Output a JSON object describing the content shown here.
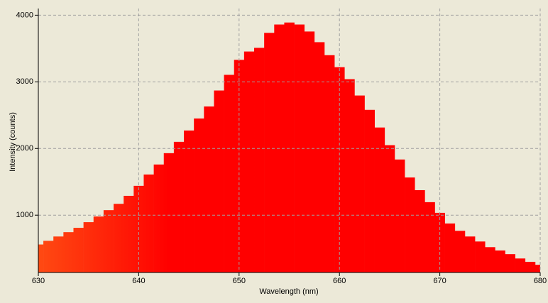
{
  "chart_data": {
    "type": "step-area",
    "x_label": "Wavelength (nm)",
    "y_label": "Intensity (counts)",
    "x": [
      630,
      631,
      632,
      633,
      634,
      635,
      636,
      637,
      638,
      639,
      640,
      641,
      642,
      643,
      644,
      645,
      646,
      647,
      648,
      649,
      650,
      651,
      652,
      653,
      654,
      655,
      656,
      657,
      658,
      659,
      660,
      661,
      662,
      663,
      664,
      665,
      666,
      667,
      668,
      669,
      670,
      671,
      672,
      673,
      674,
      675,
      676,
      677,
      678,
      679,
      680
    ],
    "values": [
      560,
      615,
      680,
      745,
      810,
      895,
      980,
      1075,
      1170,
      1290,
      1440,
      1610,
      1760,
      1930,
      2100,
      2270,
      2450,
      2630,
      2870,
      3105,
      3330,
      3455,
      3510,
      3735,
      3860,
      3890,
      3860,
      3755,
      3595,
      3400,
      3220,
      3040,
      2795,
      2580,
      2315,
      2050,
      1835,
      1565,
      1375,
      1195,
      1035,
      875,
      765,
      680,
      605,
      520,
      470,
      415,
      350,
      300,
      255
    ],
    "gradient_colors": [
      "#ff4a12",
      "#ff0000"
    ],
    "xlim": [
      630,
      680
    ],
    "ylim": [
      140,
      4100
    ],
    "xticks": [
      630,
      640,
      650,
      660,
      670,
      680
    ],
    "yticks": [
      1000,
      2000,
      3000,
      4000
    ],
    "grid": true
  }
}
